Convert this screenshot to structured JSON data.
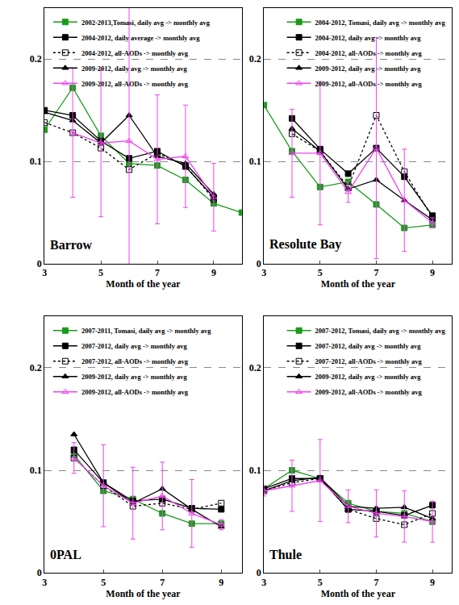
{
  "chart_data": [
    {
      "type": "line",
      "title": "Barrow",
      "xlabel": "Month of the year",
      "x": [
        3,
        4,
        5,
        6,
        7,
        8,
        9,
        10
      ],
      "xlim": [
        3,
        10
      ],
      "ylim": [
        0,
        0.25
      ],
      "xticks": [
        3,
        5,
        7,
        9
      ],
      "yticks": [
        0,
        0.1,
        0.2
      ],
      "grid": true,
      "legend": "upper left",
      "series": [
        {
          "name": "2002-2013,Tomasi, daily avg -> monthly avg",
          "color": "#1a9a1a",
          "marker": "square",
          "line_style": "solid",
          "values": [
            0.131,
            0.172,
            0.125,
            0.098,
            0.096,
            0.082,
            0.059,
            0.05
          ]
        },
        {
          "name": "2004-2012, daily average -> monthly avg",
          "color": "#000000",
          "marker": "square",
          "line_style": "solid",
          "values": [
            0.15,
            0.145,
            0.12,
            0.103,
            0.11,
            0.095,
            0.065,
            null
          ]
        },
        {
          "name": "2004-2012, all-AODs -> monthly avg",
          "color": "#000000",
          "marker": "square-open",
          "line_style": "dot",
          "values": [
            0.138,
            0.128,
            0.113,
            0.092,
            0.108,
            0.096,
            0.063,
            null
          ]
        },
        {
          "name": "2009-2012, daily avg -> monthly avg",
          "color": "#000000",
          "marker": "triangle-up",
          "line_style": "solid",
          "values": [
            0.148,
            0.14,
            0.118,
            0.145,
            0.105,
            0.098,
            0.068,
            null
          ]
        },
        {
          "name": "2009-2012, all-AODs -> monthly avg",
          "color": "#ee44ee",
          "marker": "triangle-up-open",
          "line_style": "solid",
          "values": [
            null,
            0.128,
            0.118,
            0.12,
            0.102,
            0.105,
            0.065,
            null
          ],
          "error": [
            null,
            0.063,
            0.072,
            0.15,
            0.063,
            0.05,
            0.033,
            null
          ]
        }
      ]
    },
    {
      "type": "line",
      "title": "Resolute Bay",
      "xlabel": "Month of the year",
      "x": [
        3,
        4,
        5,
        6,
        7,
        8,
        9
      ],
      "xlim": [
        3,
        9.7
      ],
      "ylim": [
        0,
        0.25
      ],
      "xticks": [
        3,
        5,
        7,
        9
      ],
      "yticks": [
        0,
        0.1,
        0.2
      ],
      "grid": true,
      "legend": "upper right",
      "series": [
        {
          "name": "2004-2012, Tomasi, daily avg -> monthly avg",
          "color": "#1a9a1a",
          "marker": "square",
          "line_style": "solid",
          "values": [
            0.155,
            0.11,
            0.075,
            0.08,
            0.058,
            0.035,
            0.038
          ]
        },
        {
          "name": "2004-2012, daily avg -> monthly avg",
          "color": "#000000",
          "marker": "square",
          "line_style": "solid",
          "values": [
            null,
            0.142,
            0.112,
            0.088,
            0.113,
            0.085,
            0.047
          ]
        },
        {
          "name": "2004-2012, all-AODs -> monthly avg",
          "color": "#000000",
          "marker": "square-open",
          "line_style": "dot",
          "values": [
            null,
            0.127,
            0.11,
            0.075,
            0.145,
            0.09,
            0.045
          ]
        },
        {
          "name": "2009-2012, daily avg -> monthly avg",
          "color": "#000000",
          "marker": "triangle-up",
          "line_style": "solid",
          "values": [
            null,
            0.132,
            0.11,
            0.073,
            0.082,
            0.062,
            0.043
          ]
        },
        {
          "name": "2009-2012, all-AODs -> monthly avg",
          "color": "#ee44ee",
          "marker": "triangle-up-open",
          "line_style": "solid",
          "values": [
            null,
            0.108,
            0.108,
            0.07,
            0.113,
            0.062,
            0.04
          ],
          "error": [
            null,
            0.043,
            0.07,
            0.01,
            0.108,
            0.05,
            0.005
          ]
        }
      ]
    },
    {
      "type": "line",
      "title": "0PAL",
      "xlabel": "Month of the year",
      "x": [
        4,
        5,
        6,
        7,
        8,
        9
      ],
      "xlim": [
        3,
        9.7
      ],
      "ylim": [
        0,
        0.25
      ],
      "xticks": [
        3,
        5,
        7,
        9
      ],
      "yticks": [
        0,
        0.1,
        0.2
      ],
      "grid": true,
      "legend": "upper left",
      "series": [
        {
          "name": "2007-2011, Tomasi, daily avg -> monthly avg",
          "color": "#1a9a1a",
          "marker": "square",
          "line_style": "solid",
          "values": [
            0.115,
            0.08,
            0.072,
            0.058,
            0.048,
            0.048
          ]
        },
        {
          "name": "2007-2012, daily avg -> monthly avg",
          "color": "#000000",
          "marker": "square",
          "line_style": "solid",
          "values": [
            0.12,
            0.088,
            0.07,
            0.072,
            0.063,
            0.062
          ]
        },
        {
          "name": "2007-2012, all-AODs -> monthly avg",
          "color": "#000000",
          "marker": "square-open",
          "line_style": "dot",
          "values": [
            0.112,
            0.085,
            0.065,
            0.068,
            0.062,
            0.068
          ]
        },
        {
          "name": "2009-2012, daily avg -> monthly avg",
          "color": "#000000",
          "marker": "triangle-up",
          "line_style": "solid",
          "values": [
            0.135,
            0.088,
            0.068,
            0.082,
            0.062,
            0.045
          ]
        },
        {
          "name": "2009-2012, all-AODs -> monthly avg",
          "color": "#ee44ee",
          "marker": "triangle-up-open",
          "line_style": "solid",
          "values": [
            0.112,
            0.085,
            0.068,
            0.075,
            0.058,
            0.047
          ],
          "error": [
            0.015,
            0.04,
            0.035,
            0.033,
            0.033,
            0.005
          ]
        }
      ]
    },
    {
      "type": "line",
      "title": "Thule",
      "xlabel": "Month of the year",
      "x": [
        3,
        4,
        5,
        6,
        7,
        8,
        9
      ],
      "xlim": [
        3,
        9.7
      ],
      "ylim": [
        0,
        0.25
      ],
      "xticks": [
        3,
        5,
        7,
        9
      ],
      "yticks": [
        0,
        0.1,
        0.2
      ],
      "grid": true,
      "legend": "upper right",
      "series": [
        {
          "name": "2007-2012, Tomasi, daily avg -> monthly avg",
          "color": "#1a9a1a",
          "marker": "square",
          "line_style": "solid",
          "values": [
            0.082,
            0.1,
            0.092,
            0.068,
            0.06,
            0.058,
            0.05
          ]
        },
        {
          "name": "2007-2012, daily avg -> monthly avg",
          "color": "#000000",
          "marker": "square",
          "line_style": "solid",
          "values": [
            0.082,
            0.092,
            0.092,
            0.062,
            0.06,
            0.056,
            0.066
          ]
        },
        {
          "name": "2007-2012, all-AODs -> monthly avg",
          "color": "#000000",
          "marker": "square-open",
          "line_style": "dot",
          "values": [
            0.08,
            0.088,
            0.092,
            0.062,
            0.053,
            0.047,
            0.058
          ]
        },
        {
          "name": "2009-2012, daily avg -> monthly avg",
          "color": "#000000",
          "marker": "triangle-up",
          "line_style": "solid",
          "values": [
            0.08,
            0.09,
            0.093,
            0.065,
            0.063,
            0.064,
            0.053
          ]
        },
        {
          "name": "2009-2012, all-AODs -> monthly avg",
          "color": "#ee44ee",
          "marker": "triangle-up-open",
          "line_style": "solid",
          "values": [
            0.08,
            0.085,
            0.09,
            0.065,
            0.058,
            0.055,
            0.05
          ],
          "error": [
            0.005,
            0.025,
            0.04,
            0.016,
            0.023,
            0.025,
            0.02
          ]
        }
      ]
    }
  ]
}
